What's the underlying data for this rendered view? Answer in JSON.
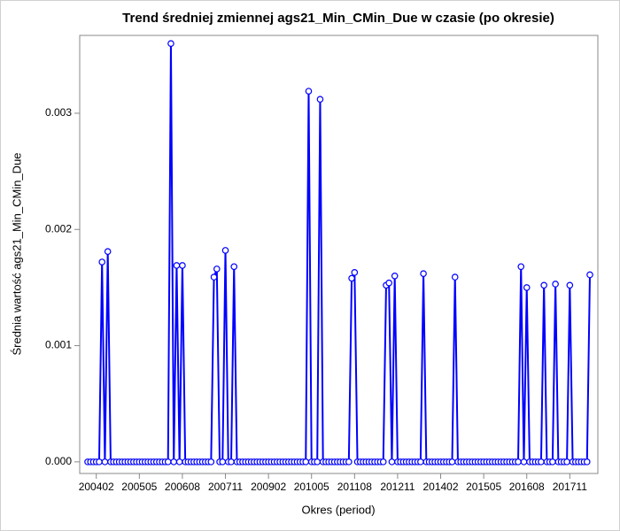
{
  "chart_data": {
    "type": "line",
    "title": "Trend średniej zmiennej ags21_Min_CMin_Due w czasie (po okresie)",
    "x_label": "Okres (period)",
    "y_label": "Średnia wartość ags21_Min_CMin_Due",
    "color": "#0000ff",
    "categories": [
      null,
      null,
      null,
      "200402",
      null,
      null,
      null,
      null,
      null,
      null,
      null,
      null,
      null,
      null,
      null,
      null,
      null,
      null,
      "200505",
      null,
      null,
      null,
      null,
      null,
      null,
      null,
      null,
      null,
      null,
      null,
      null,
      null,
      null,
      "200608",
      null,
      null,
      null,
      null,
      null,
      null,
      null,
      null,
      null,
      null,
      null,
      null,
      null,
      null,
      "200711",
      null,
      null,
      null,
      null,
      null,
      null,
      null,
      null,
      null,
      null,
      null,
      null,
      null,
      null,
      "200902",
      null,
      null,
      null,
      null,
      null,
      null,
      null,
      null,
      null,
      null,
      null,
      null,
      null,
      null,
      "201005",
      null,
      null,
      null,
      null,
      null,
      null,
      null,
      null,
      null,
      null,
      null,
      null,
      null,
      null,
      "201108",
      null,
      null,
      null,
      null,
      null,
      null,
      null,
      null,
      null,
      null,
      null,
      null,
      null,
      null,
      "201211",
      null,
      null,
      null,
      null,
      null,
      null,
      null,
      null,
      null,
      null,
      null,
      null,
      null,
      null,
      "201402",
      null,
      null,
      null,
      null,
      null,
      null,
      null,
      null,
      null,
      null,
      null,
      null,
      null,
      null,
      "201505",
      null,
      null,
      null,
      null,
      null,
      null,
      null,
      null,
      null,
      null,
      null,
      null,
      null,
      null,
      "201608",
      null,
      null,
      null,
      null,
      null,
      null,
      null,
      null,
      null,
      null,
      null,
      null,
      null,
      null,
      "201711",
      null,
      null,
      null,
      null,
      null,
      null,
      null
    ],
    "values": [
      0,
      0,
      0,
      0,
      0,
      0.00172,
      0,
      0.00181,
      0,
      0,
      0,
      0,
      0,
      0,
      0,
      0,
      0,
      0,
      0,
      0,
      0,
      0,
      0,
      0,
      0,
      0,
      0,
      0,
      0,
      0.0036,
      0,
      0.00169,
      0,
      0.00169,
      0,
      0,
      0,
      0,
      0,
      0,
      0,
      0,
      0,
      0,
      0.00159,
      0.00166,
      0,
      0,
      0.00182,
      0,
      0,
      0.00168,
      0,
      0,
      0,
      0,
      0,
      0,
      0,
      0,
      0,
      0,
      0,
      0,
      0,
      0,
      0,
      0,
      0,
      0,
      0,
      0,
      0,
      0,
      0,
      0,
      0,
      0.00319,
      0,
      0,
      0,
      0.00312,
      0,
      0,
      0,
      0,
      0,
      0,
      0,
      0,
      0,
      0,
      0.00158,
      0.00163,
      0,
      0,
      0,
      0,
      0,
      0,
      0,
      0,
      0,
      0,
      0.00152,
      0.00154,
      0,
      0.0016,
      0,
      0,
      0,
      0,
      0,
      0,
      0,
      0,
      0,
      0.00162,
      0,
      0,
      0,
      0,
      0,
      0,
      0,
      0,
      0,
      0,
      0.00159,
      0,
      0,
      0,
      0,
      0,
      0,
      0,
      0,
      0,
      0,
      0,
      0,
      0,
      0,
      0,
      0,
      0,
      0,
      0,
      0,
      0,
      0,
      0.00168,
      0,
      0.0015,
      0,
      0,
      0,
      0,
      0,
      0.00152,
      0,
      0,
      0,
      0.00153,
      0,
      0,
      0,
      0,
      0.00152,
      0,
      0,
      0,
      0,
      0,
      0,
      0.00161
    ],
    "ylim": [
      -0.0001,
      0.00367
    ],
    "yticks": [
      {
        "value": 0,
        "label": "0.000"
      },
      {
        "value": 0.001,
        "label": "0.001"
      },
      {
        "value": 0.002,
        "label": "0.002"
      },
      {
        "value": 0.003,
        "label": "0.003"
      }
    ]
  }
}
